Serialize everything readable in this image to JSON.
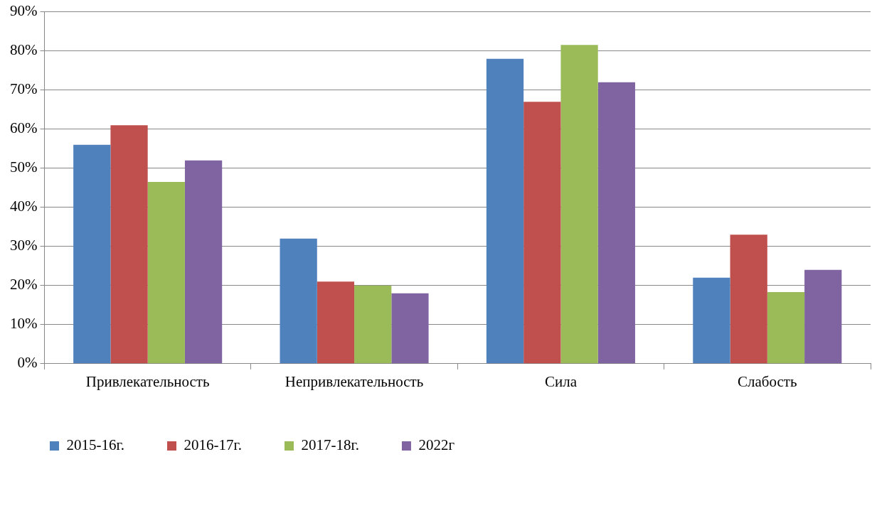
{
  "chart_data": {
    "type": "bar",
    "categories": [
      "Привлекательность",
      "Непривлекательность",
      "Сила",
      "Слабость"
    ],
    "series": [
      {
        "name": "2015-16г.",
        "color": "#4f81bd",
        "values": [
          56,
          32,
          78,
          22
        ]
      },
      {
        "name": "2016-17г.",
        "color": "#c0504d",
        "values": [
          61,
          21,
          67,
          33
        ]
      },
      {
        "name": "2017-18г.",
        "color": "#9bbb59",
        "values": [
          46.5,
          20,
          81.5,
          18.3
        ]
      },
      {
        "name": "2022г",
        "color": "#8064a2",
        "values": [
          52,
          18,
          72,
          24
        ]
      }
    ],
    "ylim": [
      0,
      90
    ],
    "yticks": [
      {
        "value": 0,
        "label": "0%"
      },
      {
        "value": 10,
        "label": "10%"
      },
      {
        "value": 20,
        "label": "20%"
      },
      {
        "value": 30,
        "label": "30%"
      },
      {
        "value": 40,
        "label": "40%"
      },
      {
        "value": 50,
        "label": "50%"
      },
      {
        "value": 60,
        "label": "60%"
      },
      {
        "value": 70,
        "label": "70%"
      },
      {
        "value": 80,
        "label": "80%"
      },
      {
        "value": 90,
        "label": "90%"
      }
    ],
    "grid": "y",
    "legend": "bottom left"
  }
}
